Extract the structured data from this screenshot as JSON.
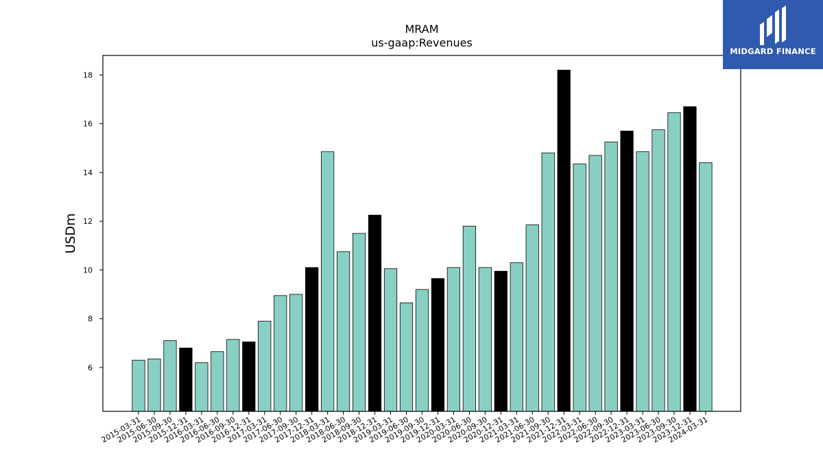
{
  "chart_data": {
    "type": "bar",
    "title": "MRAM",
    "subtitle": "us-gaap:Revenues",
    "xlabel": "",
    "ylabel": "USDm",
    "ylim": [
      4.2,
      18.8
    ],
    "yticks": [
      6,
      8,
      10,
      12,
      14,
      16,
      18
    ],
    "grid": false,
    "categories": [
      "2015-03-31",
      "2015-06-30",
      "2015-09-30",
      "2015-12-31",
      "2016-03-31",
      "2016-06-30",
      "2016-09-30",
      "2016-12-31",
      "2017-03-31",
      "2017-06-30",
      "2017-09-30",
      "2017-12-31",
      "2018-03-31",
      "2018-06-30",
      "2018-09-30",
      "2018-12-31",
      "2019-03-31",
      "2019-06-30",
      "2019-09-30",
      "2019-12-31",
      "2020-03-31",
      "2020-06-30",
      "2020-09-30",
      "2020-12-31",
      "2021-03-31",
      "2021-06-30",
      "2021-09-30",
      "2021-12-31",
      "2022-03-31",
      "2022-06-30",
      "2022-09-30",
      "2022-12-31",
      "2023-03-31",
      "2023-06-30",
      "2023-09-30",
      "2023-12-31",
      "2024-03-31"
    ],
    "values": [
      6.3,
      6.35,
      7.1,
      6.8,
      6.2,
      6.65,
      7.15,
      7.05,
      7.9,
      8.95,
      9.0,
      10.1,
      14.85,
      10.75,
      11.5,
      12.25,
      10.05,
      8.65,
      9.2,
      9.65,
      10.1,
      11.8,
      10.1,
      9.95,
      10.3,
      11.85,
      14.8,
      18.2,
      14.35,
      14.7,
      15.25,
      15.7,
      14.85,
      15.75,
      16.45,
      16.7,
      14.4
    ],
    "highlight": [
      false,
      false,
      false,
      true,
      false,
      false,
      false,
      true,
      false,
      false,
      false,
      true,
      false,
      false,
      false,
      true,
      false,
      false,
      false,
      true,
      false,
      false,
      false,
      true,
      false,
      false,
      false,
      true,
      false,
      false,
      false,
      true,
      false,
      false,
      false,
      true,
      false
    ],
    "colors": {
      "bar": "#88d0c4",
      "highlight": "#000000",
      "edge": "#000000"
    }
  },
  "logo": {
    "text": "MIDGARD FINANCE",
    "background": "#2f5aae"
  }
}
